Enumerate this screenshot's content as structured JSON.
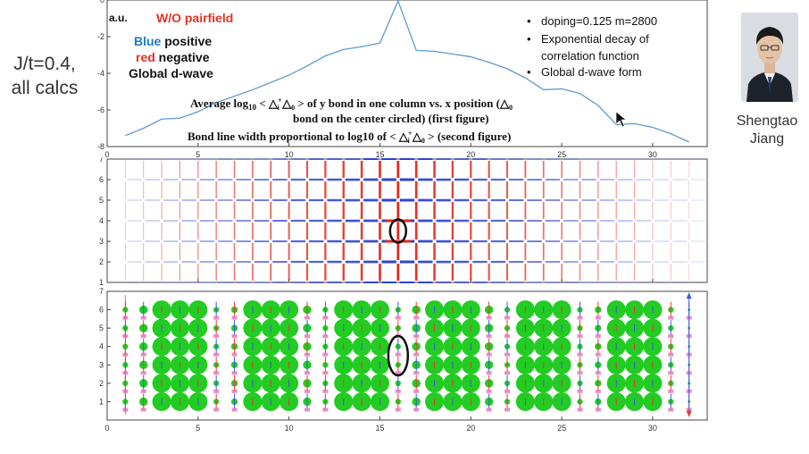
{
  "slide": {
    "side_note_line1": "J/t=0.4,",
    "side_note_line2": "all calcs",
    "presenter_first": "Shengtao",
    "presenter_last": "Jiang",
    "photo_icon": "person-portrait-icon"
  },
  "chart_data": [
    {
      "type": "line",
      "ylabel_unit": "a.u.",
      "title": "W/O pairfield",
      "legend_words": {
        "blue": "Blue",
        "blue_rest": " positive",
        "red": "red",
        "red_rest": " negative",
        "global": "Global d-wave"
      },
      "bullets": [
        "doping=0.125   m=2800",
        "Exponential decay of",
        "correlation function",
        "Global d-wave form"
      ],
      "caption_line1": "Average log",
      "caption_sub": "10",
      "caption_mid": " < △",
      "caption_sup_i": "+",
      "caption_sub_i": "i",
      "caption_tail": " △",
      "caption_sub0": "0",
      "caption_gt": " >   of y bond in one column vs. x position (△",
      "caption_sub0b": "0",
      "caption_line2": "bond on the center circled) (first figure)",
      "caption_line3_a": "Bond line width proportional to log10 of  < △",
      "caption_line3_b": " △",
      "caption_line3_c": " >   (second figure)",
      "x": [
        1,
        2,
        3,
        4,
        5,
        6,
        7,
        8,
        9,
        10,
        11,
        12,
        13,
        14,
        15,
        16,
        17,
        18,
        19,
        20,
        21,
        22,
        23,
        24,
        25,
        26,
        27,
        28,
        29,
        30,
        31,
        32
      ],
      "y": [
        -7.4,
        -7.0,
        -6.5,
        -6.45,
        -6.1,
        -5.6,
        -5.25,
        -4.9,
        -4.5,
        -4.1,
        -3.6,
        -3.05,
        -2.7,
        -2.55,
        -2.35,
        -0.05,
        -2.75,
        -2.8,
        -2.95,
        -3.1,
        -3.4,
        -3.75,
        -4.25,
        -4.9,
        -4.85,
        -5.1,
        -5.75,
        -6.8,
        -6.75,
        -6.95,
        -7.3,
        -7.75
      ],
      "xlim": [
        0,
        33
      ],
      "ylim": [
        -8,
        0
      ],
      "xticks": [
        "0",
        "5",
        "10",
        "15",
        "20",
        "25",
        "30"
      ],
      "yticks": [
        "0",
        "-2",
        "-4",
        "-6",
        "-8"
      ],
      "line_color": "#5e9ad0"
    },
    {
      "type": "lattice",
      "description_none": "",
      "xlim": [
        0,
        33
      ],
      "ylim": [
        1,
        7
      ],
      "xticks": [
        "0",
        "5",
        "10",
        "15",
        "20",
        "25",
        "30"
      ],
      "yticks": [
        "1",
        "2",
        "3",
        "4",
        "5",
        "6",
        "7"
      ],
      "vertical_bond_color": "#e02a1e",
      "horizontal_bond_color": "#2a3ed6",
      "center_bond": [
        16,
        3.5
      ]
    },
    {
      "type": "scatter",
      "xlim": [
        0,
        33
      ],
      "ylim": [
        0,
        7
      ],
      "xticks": [
        "0",
        "5",
        "10",
        "15",
        "20",
        "25",
        "30"
      ],
      "yticks": [
        "1",
        "2",
        "3",
        "4",
        "5",
        "6",
        "7"
      ],
      "site_color": "#22cc22",
      "spin_up_color": "#3a5ae0",
      "spin_down_color": "#e83a2a",
      "hole_color": "#e87ab8",
      "site_rows": [
        1,
        2,
        3,
        4,
        5,
        6
      ],
      "site_columns": [
        1,
        2,
        3,
        4,
        5,
        6,
        7,
        8,
        9,
        10,
        11,
        12,
        13,
        14,
        15,
        16,
        17,
        18,
        19,
        20,
        21,
        22,
        23,
        24,
        25,
        26,
        27,
        28,
        29,
        30,
        31,
        32
      ],
      "relative_site_sizes": [
        0.3,
        0.45,
        1,
        1,
        1,
        0.3,
        0.35,
        1,
        1,
        1,
        0.45,
        0.3,
        1,
        1,
        1,
        0.3,
        0.45,
        1,
        1,
        1,
        0.45,
        0.3,
        1,
        1,
        1,
        0.3,
        0.35,
        1,
        1,
        1,
        0.3,
        0.1
      ],
      "circled_site": [
        16,
        3.5
      ]
    }
  ]
}
